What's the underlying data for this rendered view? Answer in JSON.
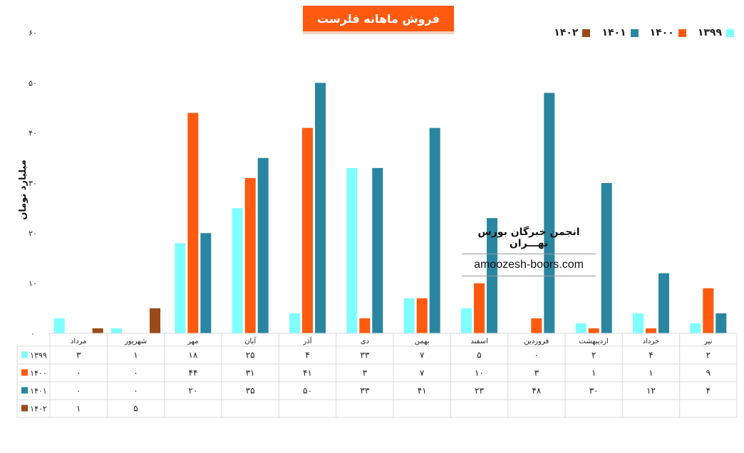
{
  "colors": {
    "s1399": "#7fffff",
    "s1400": "#ff5a10",
    "s1401": "#2a86a0",
    "s1402": "#9a4a18",
    "title_bg": "#ff5a10",
    "grid": "#d9d9d9"
  },
  "title": "فروش ماهانه قلرست",
  "watermark": {
    "fa": "انجمن خبرگان بورس تهـــران",
    "en": "amoozesh-boors.com"
  },
  "chart_data": {
    "type": "bar",
    "title": "فروش ماهانه قلرست",
    "ylabel": "میلیارد تومان",
    "xlabel": "",
    "ylim": [
      0,
      60
    ],
    "yticks": [
      "۰",
      "۱۰",
      "۲۰",
      "۳۰",
      "۴۰",
      "۵۰",
      "۶۰"
    ],
    "yticks_values": [
      0,
      10,
      20,
      30,
      40,
      50,
      60
    ],
    "legend_position": "top-right",
    "categories": [
      "مرداد",
      "شهریور",
      "مهر",
      "آبان",
      "آذر",
      "دی",
      "بهمن",
      "اسفند",
      "فروردین",
      "اردیبهشت",
      "خرداد",
      "تیر"
    ],
    "series": [
      {
        "name": "۱۳۹۹",
        "values": [
          3,
          1,
          18,
          25,
          4,
          33,
          7,
          5,
          0,
          2,
          4,
          2
        ],
        "labels": [
          "۳",
          "۱",
          "۱۸",
          "۲۵",
          "۴",
          "۳۳",
          "۷",
          "۵",
          "۰",
          "۲",
          "۴",
          "۲"
        ]
      },
      {
        "name": "۱۴۰۰",
        "values": [
          0,
          0,
          44,
          31,
          41,
          3,
          7,
          10,
          3,
          1,
          1,
          9
        ],
        "labels": [
          "۰",
          "۰",
          "۴۴",
          "۳۱",
          "۴۱",
          "۳",
          "۷",
          "۱۰",
          "۳",
          "۱",
          "۱",
          "۹"
        ]
      },
      {
        "name": "۱۴۰۱",
        "values": [
          0,
          0,
          20,
          35,
          50,
          33,
          41,
          23,
          48,
          30,
          12,
          4
        ],
        "labels": [
          "۰",
          "۰",
          "۲۰",
          "۳۵",
          "۵۰",
          "۳۳",
          "۴۱",
          "۲۳",
          "۴۸",
          "۳۰",
          "۱۲",
          "۴"
        ]
      },
      {
        "name": "۱۴۰۲",
        "values": [
          1,
          5,
          null,
          null,
          null,
          null,
          null,
          null,
          null,
          null,
          null,
          null
        ],
        "labels": [
          "۱",
          "۵",
          "",
          "",
          "",
          "",
          "",
          "",
          "",
          "",
          "",
          ""
        ]
      }
    ]
  }
}
